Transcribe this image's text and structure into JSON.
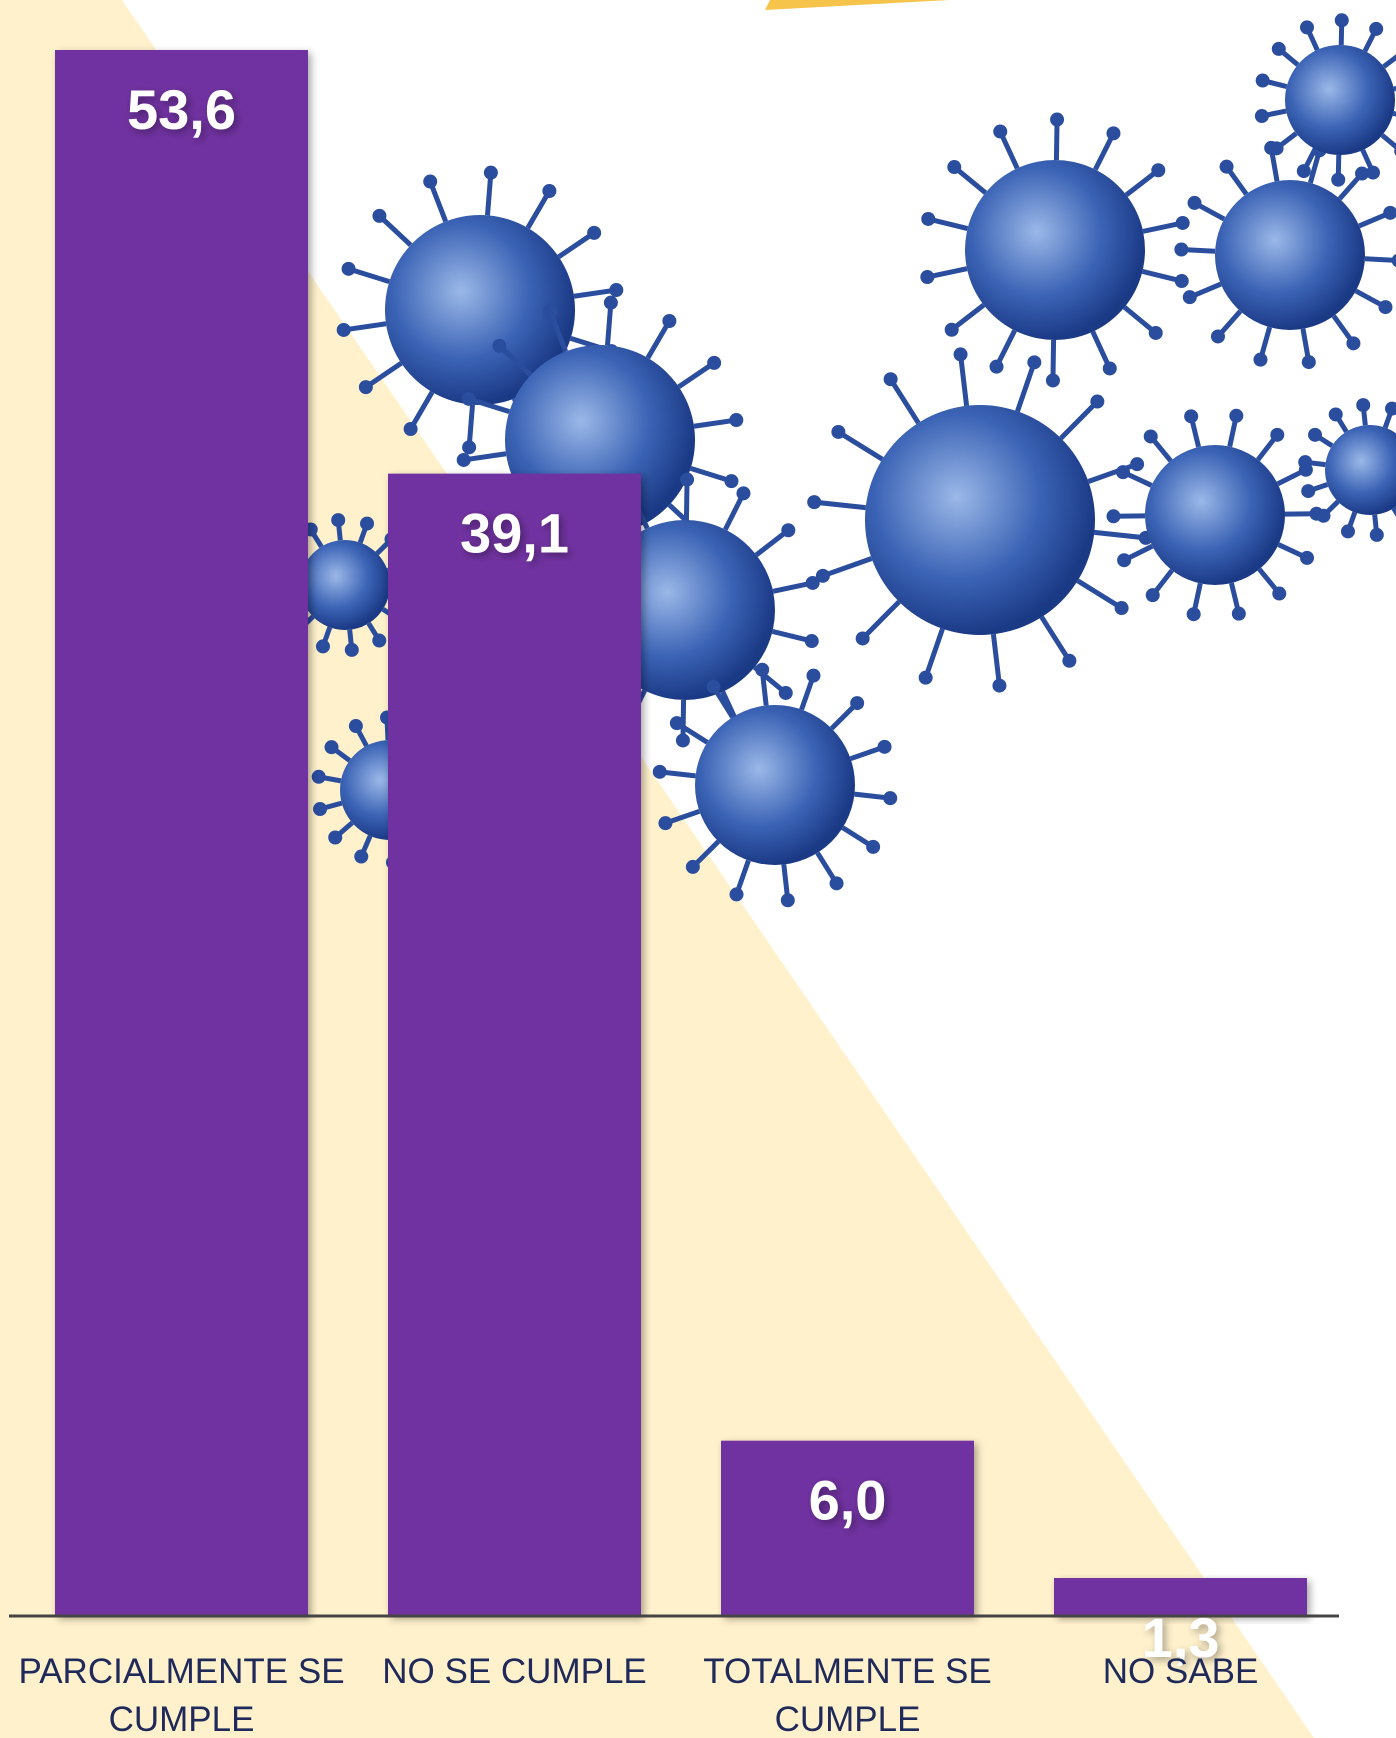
{
  "chart_data": {
    "type": "bar",
    "categories": [
      "PARCIALMENTE SE CUMPLE",
      "NO SE CUMPLE",
      "TOTALMENTE SE CUMPLE",
      "NO SABE"
    ],
    "values": [
      53.6,
      39.1,
      6.0,
      1.3
    ],
    "value_labels": [
      "53,6",
      "39,1",
      "6,0",
      "1,3"
    ],
    "color": "#7030a0"
  }
}
